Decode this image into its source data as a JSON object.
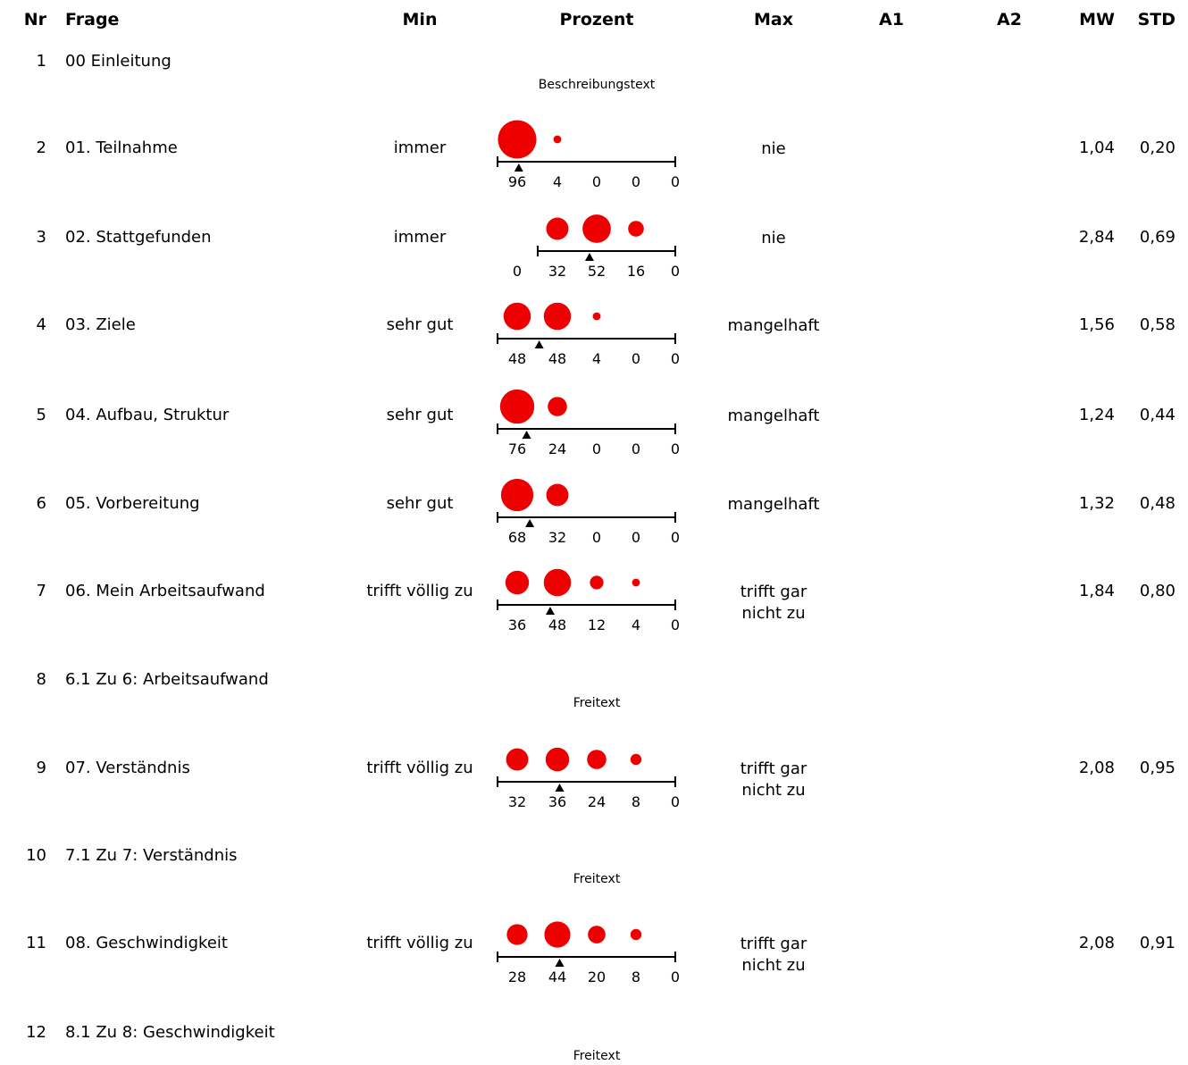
{
  "headers": {
    "nr": "Nr",
    "frage": "Frage",
    "min": "Min",
    "prozent": "Prozent",
    "max": "Max",
    "a1": "A1",
    "a2": "A2",
    "mw": "MW",
    "std": "STD"
  },
  "colors": {
    "bubble": "#ee0000",
    "axis": "#000000"
  },
  "rows": [
    {
      "nr": "1",
      "frage": "00 Einleitung",
      "kind": "text",
      "note": "Beschreibungstext"
    },
    {
      "nr": "2",
      "frage": "01. Teilnahme",
      "kind": "scale",
      "min": "immer",
      "max": "nie",
      "percents": [
        96,
        4,
        0,
        0,
        0
      ],
      "percent_labels": [
        "96",
        "4",
        "0",
        "0",
        "0"
      ],
      "mw": "1,04",
      "std": "0,20"
    },
    {
      "nr": "3",
      "frage": "02. Stattgefunden",
      "kind": "scale",
      "min": "immer",
      "max": "nie",
      "percents": [
        0,
        32,
        52,
        16,
        0
      ],
      "percent_labels": [
        "0",
        "32",
        "52",
        "16",
        "0"
      ],
      "mw": "2,84",
      "std": "0,69"
    },
    {
      "nr": "4",
      "frage": "03. Ziele",
      "kind": "scale",
      "min": "sehr gut",
      "max": "mangelhaft",
      "percents": [
        48,
        48,
        4,
        0,
        0
      ],
      "percent_labels": [
        "48",
        "48",
        "4",
        "0",
        "0"
      ],
      "mw": "1,56",
      "std": "0,58"
    },
    {
      "nr": "5",
      "frage": "04. Aufbau, Struktur",
      "kind": "scale",
      "min": "sehr gut",
      "max": "mangelhaft",
      "percents": [
        76,
        24,
        0,
        0,
        0
      ],
      "percent_labels": [
        "76",
        "24",
        "0",
        "0",
        "0"
      ],
      "mw": "1,24",
      "std": "0,44"
    },
    {
      "nr": "6",
      "frage": "05. Vorbereitung",
      "kind": "scale",
      "min": "sehr gut",
      "max": "mangelhaft",
      "percents": [
        68,
        32,
        0,
        0,
        0
      ],
      "percent_labels": [
        "68",
        "32",
        "0",
        "0",
        "0"
      ],
      "mw": "1,32",
      "std": "0,48"
    },
    {
      "nr": "7",
      "frage": "06. Mein Arbeitsaufwand",
      "kind": "scale",
      "min": "trifft völlig zu",
      "max": "trifft gar nicht zu",
      "percents": [
        36,
        48,
        12,
        4,
        0
      ],
      "percent_labels": [
        "36",
        "48",
        "12",
        "4",
        "0"
      ],
      "mw": "1,84",
      "std": "0,80"
    },
    {
      "nr": "8",
      "frage": "6.1 Zu 6: Arbeitsaufwand",
      "kind": "text",
      "note": "Freitext"
    },
    {
      "nr": "9",
      "frage": "07. Verständnis",
      "kind": "scale",
      "min": "trifft völlig zu",
      "max": "trifft gar nicht zu",
      "percents": [
        32,
        36,
        24,
        8,
        0
      ],
      "percent_labels": [
        "32",
        "36",
        "24",
        "8",
        "0"
      ],
      "mw": "2,08",
      "std": "0,95"
    },
    {
      "nr": "10",
      "frage": "7.1 Zu 7: Verständnis",
      "kind": "text",
      "note": "Freitext"
    },
    {
      "nr": "11",
      "frage": "08. Geschwindigkeit",
      "kind": "scale",
      "min": "trifft völlig zu",
      "max": "trifft gar nicht zu",
      "percents": [
        28,
        44,
        20,
        8,
        0
      ],
      "percent_labels": [
        "28",
        "44",
        "20",
        "8",
        "0"
      ],
      "mw": "2,08",
      "std": "0,91"
    },
    {
      "nr": "12",
      "frage": "8.1 Zu 8: Geschwindigkeit",
      "kind": "text",
      "note": "Freitext"
    }
  ]
}
